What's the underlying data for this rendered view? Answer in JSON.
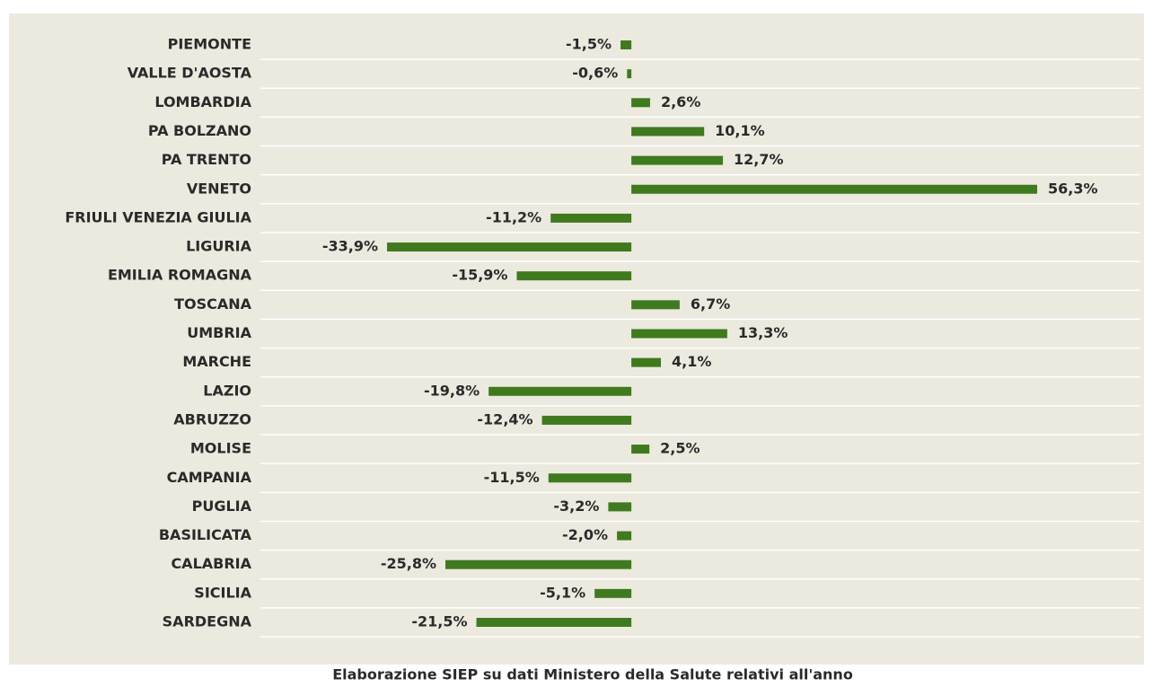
{
  "chart_data": {
    "type": "bar",
    "orientation": "horizontal",
    "categories": [
      "PIEMONTE",
      "VALLE D'AOSTA",
      "LOMBARDIA",
      "PA BOLZANO",
      "PA TRENTO",
      "VENETO",
      "FRIULI VENEZIA GIULIA",
      "LIGURIA",
      "EMILIA ROMAGNA",
      "TOSCANA",
      "UMBRIA",
      "MARCHE",
      "LAZIO",
      "ABRUZZO",
      "MOLISE",
      "CAMPANIA",
      "PUGLIA",
      "BASILICATA",
      "CALABRIA",
      "SICILIA",
      "SARDEGNA"
    ],
    "values": [
      -1.5,
      -0.6,
      2.6,
      10.1,
      12.7,
      56.3,
      -11.2,
      -33.9,
      -15.9,
      6.7,
      13.3,
      4.1,
      -19.8,
      -12.4,
      2.5,
      -11.5,
      -3.2,
      -2.0,
      -25.8,
      -5.1,
      -21.5
    ],
    "value_labels": [
      "-1,5%",
      "-0,6%",
      "2,6%",
      "10,1%",
      "12,7%",
      "56,3%",
      "-11,2%",
      "-33,9%",
      "-15,9%",
      "6,7%",
      "13,3%",
      "4,1%",
      "-19,8%",
      "-12,4%",
      "2,5%",
      "-11,5%",
      "-3,2%",
      "-2,0%",
      "-25,8%",
      "-5,1%",
      "-21,5%"
    ],
    "color": "#3f7a1e",
    "caption": "Elaborazione SIEP su dati Ministero della Salute relativi all'anno"
  }
}
